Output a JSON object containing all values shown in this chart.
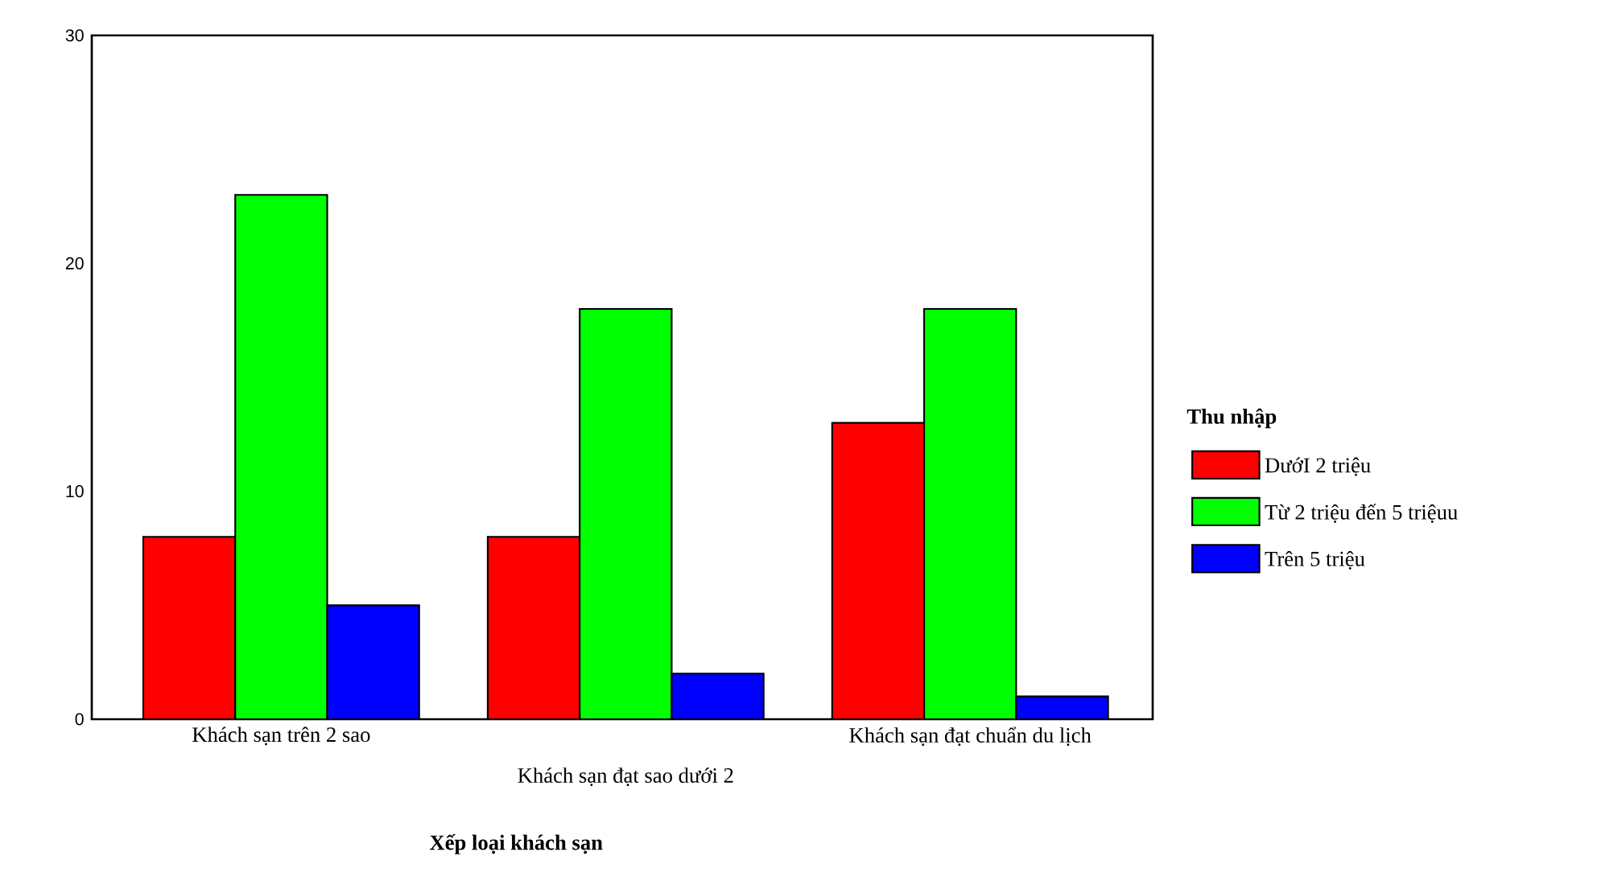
{
  "chart_data": {
    "type": "bar",
    "xlabel": "Xếp loại khách sạn",
    "legend_title": "Thu nhập",
    "categories": [
      "Khách sạn trên 2 sao",
      "Khách sạn đạt sao dưới 2",
      "Khách sạn đạt chuẩn du lịch"
    ],
    "series": [
      {
        "name": "DướI 2 triệu",
        "color": "#ff0000",
        "values": [
          8,
          8,
          13
        ]
      },
      {
        "name": "Từ 2 triệu đến 5 triệuu",
        "color": "#00ff00",
        "values": [
          23,
          18,
          18
        ]
      },
      {
        "name": "Trên 5 triệu",
        "color": "#0000ff",
        "values": [
          5,
          2,
          1
        ]
      }
    ],
    "ylim": [
      0,
      30
    ],
    "yticks": [
      0,
      10,
      20,
      30
    ],
    "legend": "right",
    "grid": false
  }
}
